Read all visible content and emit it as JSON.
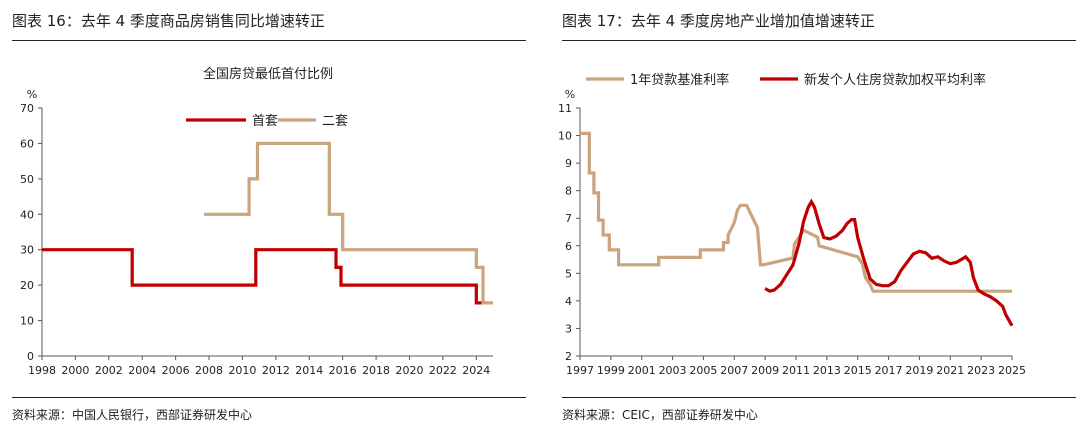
{
  "panels": [
    {
      "figure_title": "图表 16：去年 4 季度商品房销售同比增速转正",
      "source": "资料来源：中国人民银行，西部证券研发中心"
    },
    {
      "figure_title": "图表 17：去年 4 季度房地产业增加值增速转正",
      "source": "资料来源：CEIC，西部证券研发中心"
    }
  ],
  "chart_data": [
    {
      "type": "line",
      "title": "全国房贷最低首付比例",
      "ylabel": "%",
      "ylim": [
        0,
        70
      ],
      "yticks": [
        0,
        10,
        20,
        30,
        40,
        50,
        60,
        70
      ],
      "xlim": [
        1998,
        2025
      ],
      "xticks": [
        1998,
        2000,
        2002,
        2004,
        2006,
        2008,
        2010,
        2012,
        2014,
        2016,
        2018,
        2020,
        2022,
        2024
      ],
      "legend_position": "top-center",
      "grid": false,
      "series": [
        {
          "name": "首套",
          "color": "#C00000",
          "x": [
            1998.0,
            2003.4,
            2003.4,
            2010.8,
            2010.8,
            2015.6,
            2015.6,
            2015.9,
            2015.9,
            2024.0,
            2024.0,
            2024.6
          ],
          "y": [
            30,
            30,
            20,
            20,
            30,
            30,
            25,
            25,
            20,
            20,
            15,
            15
          ]
        },
        {
          "name": "二套",
          "color": "#C9A47E",
          "x": [
            2007.7,
            2010.4,
            2010.4,
            2010.9,
            2010.9,
            2015.2,
            2015.2,
            2016.0,
            2016.0,
            2024.0,
            2024.0,
            2024.4,
            2024.4,
            2025.0
          ],
          "y": [
            40,
            40,
            50,
            50,
            60,
            60,
            40,
            40,
            30,
            30,
            25,
            25,
            15,
            15
          ]
        }
      ]
    },
    {
      "type": "line",
      "title": "",
      "ylabel": "%",
      "ylim": [
        2,
        11
      ],
      "yticks": [
        2,
        3,
        4,
        5,
        6,
        7,
        8,
        9,
        10,
        11
      ],
      "xlim": [
        1997,
        2025
      ],
      "xticks": [
        1997,
        1999,
        2001,
        2003,
        2005,
        2007,
        2009,
        2011,
        2013,
        2015,
        2017,
        2019,
        2021,
        2023,
        2025
      ],
      "legend_position": "top",
      "grid": false,
      "series": [
        {
          "name": "1年贷款基准利率",
          "color": "#C9A47E",
          "x": [
            1997.0,
            1997.6,
            1997.6,
            1997.9,
            1997.9,
            1998.2,
            1998.2,
            1998.5,
            1998.5,
            1998.9,
            1998.9,
            1999.5,
            1999.5,
            2002.1,
            2002.1,
            2004.8,
            2004.8,
            2006.3,
            2006.3,
            2006.6,
            2006.6,
            2007.0,
            2007.2,
            2007.4,
            2007.6,
            2007.8,
            2008.5,
            2008.7,
            2008.9,
            2010.8,
            2010.9,
            2011.2,
            2011.5,
            2012.4,
            2012.5,
            2015.0,
            2015.3,
            2015.5,
            2015.8,
            2016.0,
            2025.0
          ],
          "y": [
            10.08,
            10.08,
            8.64,
            8.64,
            7.92,
            7.92,
            6.93,
            6.93,
            6.39,
            6.39,
            5.85,
            5.85,
            5.31,
            5.31,
            5.58,
            5.58,
            5.85,
            5.85,
            6.12,
            6.12,
            6.39,
            6.84,
            7.29,
            7.47,
            7.47,
            7.47,
            6.66,
            5.31,
            5.31,
            5.56,
            6.06,
            6.31,
            6.56,
            6.31,
            6.0,
            5.6,
            5.35,
            4.85,
            4.6,
            4.35,
            4.35
          ]
        },
        {
          "name": "新发个人住房贷款加权平均利率",
          "color": "#C00000",
          "x": [
            2009.0,
            2009.3,
            2009.6,
            2010.0,
            2010.4,
            2010.8,
            2011.2,
            2011.5,
            2011.8,
            2012.0,
            2012.2,
            2012.5,
            2012.8,
            2013.2,
            2013.6,
            2014.0,
            2014.3,
            2014.6,
            2014.8,
            2015.0,
            2015.4,
            2015.8,
            2016.2,
            2016.6,
            2017.0,
            2017.4,
            2017.8,
            2018.2,
            2018.6,
            2019.0,
            2019.4,
            2019.8,
            2020.2,
            2020.6,
            2021.0,
            2021.4,
            2021.7,
            2022.0,
            2022.3,
            2022.5,
            2022.8,
            2023.2,
            2023.6,
            2024.0,
            2024.4,
            2024.6,
            2024.8,
            2025.0
          ],
          "y": [
            4.45,
            4.35,
            4.4,
            4.6,
            4.95,
            5.3,
            6.1,
            6.9,
            7.4,
            7.6,
            7.4,
            6.8,
            6.3,
            6.25,
            6.35,
            6.55,
            6.8,
            6.95,
            6.95,
            6.3,
            5.5,
            4.8,
            4.6,
            4.55,
            4.55,
            4.7,
            5.1,
            5.4,
            5.7,
            5.8,
            5.75,
            5.55,
            5.6,
            5.45,
            5.35,
            5.4,
            5.5,
            5.6,
            5.4,
            4.85,
            4.4,
            4.25,
            4.15,
            4.0,
            3.8,
            3.5,
            3.3,
            3.1
          ]
        }
      ]
    }
  ]
}
